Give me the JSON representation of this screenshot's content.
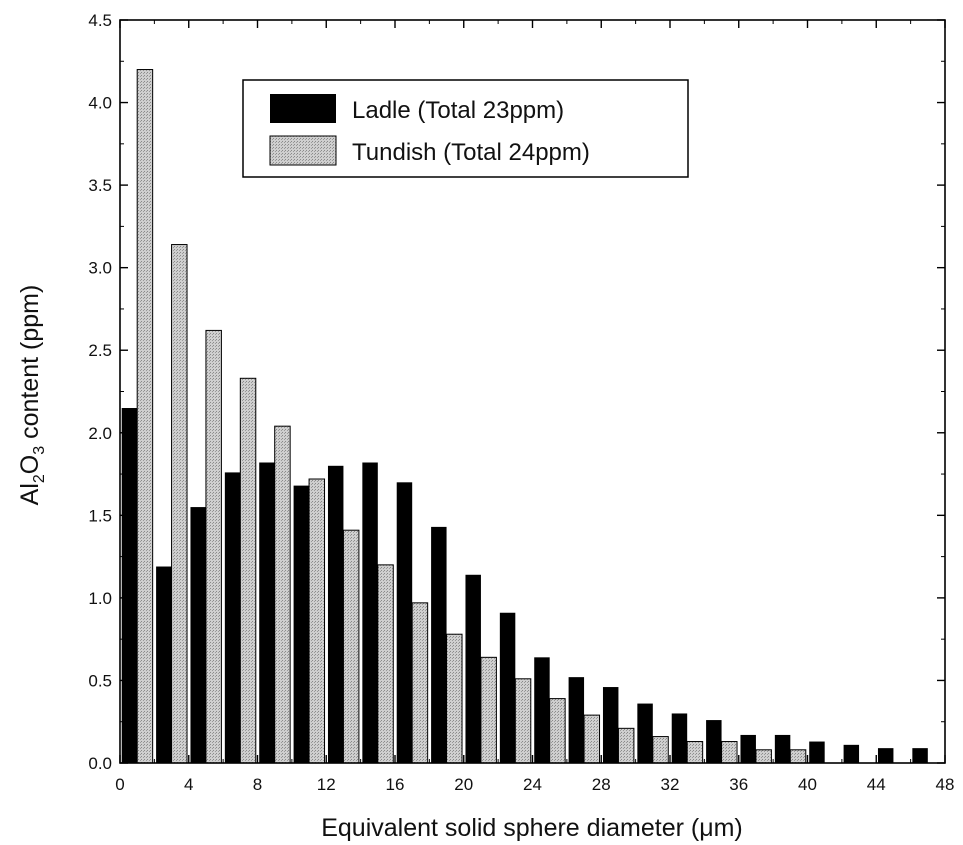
{
  "chart_data": {
    "type": "bar",
    "xlabel": "Equivalent solid sphere diameter (μm)",
    "ylabel": {
      "prefix": "Al",
      "sub1": "2",
      "mid": "O",
      "sub2": "3",
      "suffix": " content (ppm)"
    },
    "xlim": [
      0,
      48
    ],
    "ylim": [
      0,
      4.5
    ],
    "x_ticks": [
      "0",
      "4",
      "8",
      "12",
      "16",
      "20",
      "24",
      "28",
      "32",
      "36",
      "40",
      "44",
      "48"
    ],
    "y_ticks": [
      "0.0",
      "0.5",
      "1.0",
      "1.5",
      "2.0",
      "2.5",
      "3.0",
      "3.5",
      "4.0",
      "4.5"
    ],
    "bin_width": 2,
    "bin_starts": [
      0,
      2,
      4,
      6,
      8,
      10,
      12,
      14,
      16,
      18,
      20,
      22,
      24,
      26,
      28,
      30,
      32,
      34,
      36,
      38,
      40,
      42,
      44,
      46
    ],
    "series": [
      {
        "name": "Ladle (Total 23ppm)",
        "color": "#000000",
        "values": [
          2.15,
          1.19,
          1.55,
          1.76,
          1.82,
          1.68,
          1.8,
          1.82,
          1.7,
          1.43,
          1.14,
          0.91,
          0.64,
          0.52,
          0.46,
          0.36,
          0.3,
          0.26,
          0.17,
          0.17,
          0.13,
          0.11,
          0.09,
          0.09
        ]
      },
      {
        "name": "Tundish (Total 24ppm)",
        "color": "#c8c8c8",
        "values": [
          4.2,
          3.14,
          2.62,
          2.33,
          2.04,
          1.72,
          1.41,
          1.2,
          0.97,
          0.78,
          0.64,
          0.51,
          0.39,
          0.29,
          0.21,
          0.16,
          0.13,
          0.13,
          0.08,
          0.08,
          0.0,
          0.0,
          0.0,
          0.0
        ]
      }
    ],
    "legend_position": "top-center",
    "grid": false
  }
}
